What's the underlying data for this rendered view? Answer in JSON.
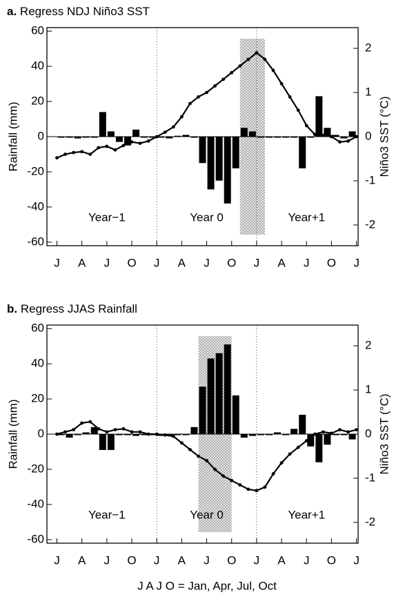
{
  "chart_data": [
    {
      "type": "bar",
      "label": "a.",
      "title": "Regress NDJ Niño3 SST",
      "ylabel": "Rainfall (mm)",
      "y2label": "Niño3 SST (°C)",
      "xlim": [
        -1.2,
        36.2
      ],
      "xticks": [
        {
          "value": 0,
          "label": "J"
        },
        {
          "value": 3,
          "label": "A"
        },
        {
          "value": 6,
          "label": "J"
        },
        {
          "value": 9,
          "label": "O"
        },
        {
          "value": 12,
          "label": "J"
        },
        {
          "value": 15,
          "label": "A"
        },
        {
          "value": 18,
          "label": "J"
        },
        {
          "value": 21,
          "label": "O"
        },
        {
          "value": 24,
          "label": "J"
        },
        {
          "value": 27,
          "label": "A"
        },
        {
          "value": 30,
          "label": "J"
        },
        {
          "value": 33,
          "label": "O"
        },
        {
          "value": 36,
          "label": "J"
        }
      ],
      "ylim": [
        -62,
        62
      ],
      "yticks": [
        -60,
        -40,
        -20,
        0,
        20,
        40,
        60
      ],
      "y2lim": [
        -2.47,
        2.47
      ],
      "y2ticks": [
        -2,
        -1,
        0,
        1,
        2
      ],
      "vlines": [
        12,
        24
      ],
      "shade": [
        22,
        25
      ],
      "annotations": [
        "Year−1",
        "Year 0",
        "Year+1"
      ],
      "series": [
        {
          "type": "bar",
          "color": "#000000",
          "x": [
            0.5,
            1.5,
            2.5,
            3.5,
            4.5,
            5.5,
            6.5,
            7.5,
            8.5,
            9.5,
            10.5,
            11.5,
            12.5,
            13.5,
            14.5,
            15.5,
            16.5,
            17.5,
            18.5,
            19.5,
            20.5,
            21.5,
            22.5,
            23.5,
            24.5,
            25.5,
            26.5,
            27.5,
            28.5,
            29.5,
            30.5,
            31.5,
            32.5,
            33.5,
            34.5,
            35.5
          ],
          "values": [
            0,
            0,
            -1,
            0,
            0,
            14,
            3,
            -3,
            -5,
            4,
            0,
            0,
            0,
            -1,
            0.5,
            1,
            0,
            -15,
            -30,
            -25,
            -38,
            -18,
            5,
            3,
            0,
            0,
            0,
            0,
            0,
            -18,
            0,
            23,
            5,
            1,
            -1,
            3
          ]
        },
        {
          "type": "line",
          "axis": "y2",
          "color": "#000000",
          "x": [
            0,
            1,
            2,
            3,
            4,
            5,
            6,
            7,
            8,
            9,
            10,
            11,
            12,
            13,
            14,
            15,
            16,
            17,
            18,
            19,
            20,
            21,
            22,
            23,
            24,
            25,
            26,
            27,
            28,
            29,
            30,
            31,
            32,
            33,
            34,
            35,
            36
          ],
          "values": [
            -0.48,
            -0.4,
            -0.36,
            -0.34,
            -0.4,
            -0.25,
            -0.22,
            -0.3,
            -0.2,
            -0.12,
            -0.15,
            -0.1,
            0,
            0.1,
            0.22,
            0.45,
            0.75,
            0.9,
            1.0,
            1.15,
            1.3,
            1.45,
            1.6,
            1.75,
            1.9,
            1.75,
            1.5,
            1.2,
            0.9,
            0.6,
            0.25,
            0.05,
            0.03,
            0,
            -0.12,
            -0.1,
            0
          ]
        }
      ]
    },
    {
      "type": "bar",
      "label": "b.",
      "title": "Regress JJAS Rainfall",
      "ylabel": "Rainfall (mm)",
      "y2label": "Niño3 SST (°C)",
      "xlim": [
        -1.2,
        36.2
      ],
      "xticks": [
        {
          "value": 0,
          "label": "J"
        },
        {
          "value": 3,
          "label": "A"
        },
        {
          "value": 6,
          "label": "J"
        },
        {
          "value": 9,
          "label": "O"
        },
        {
          "value": 12,
          "label": "J"
        },
        {
          "value": 15,
          "label": "A"
        },
        {
          "value": 18,
          "label": "J"
        },
        {
          "value": 21,
          "label": "O"
        },
        {
          "value": 24,
          "label": "J"
        },
        {
          "value": 27,
          "label": "A"
        },
        {
          "value": 30,
          "label": "J"
        },
        {
          "value": 33,
          "label": "O"
        },
        {
          "value": 36,
          "label": "J"
        }
      ],
      "ylim": [
        -62,
        62
      ],
      "yticks": [
        -60,
        -40,
        -20,
        0,
        20,
        40,
        60
      ],
      "y2lim": [
        -2.47,
        2.47
      ],
      "y2ticks": [
        -2,
        -1,
        0,
        1,
        2
      ],
      "vlines": [
        12,
        24
      ],
      "shade": [
        17,
        21
      ],
      "annotations": [
        "Year−1",
        "Year 0",
        "Year+1"
      ],
      "series": [
        {
          "type": "bar",
          "color": "#000000",
          "x": [
            0.5,
            1.5,
            2.5,
            3.5,
            4.5,
            5.5,
            6.5,
            7.5,
            8.5,
            9.5,
            10.5,
            11.5,
            12.5,
            13.5,
            14.5,
            15.5,
            16.5,
            17.5,
            18.5,
            19.5,
            20.5,
            21.5,
            22.5,
            23.5,
            24.5,
            25.5,
            26.5,
            27.5,
            28.5,
            29.5,
            30.5,
            31.5,
            32.5,
            33.5,
            34.5,
            35.5
          ],
          "values": [
            0,
            -2,
            0,
            1,
            4,
            -9,
            -9,
            0,
            0,
            -1,
            0,
            0,
            -1,
            -1,
            0,
            0,
            4,
            27,
            43,
            46,
            51,
            22,
            -2,
            -1,
            0,
            0,
            1,
            0,
            3,
            11,
            -7,
            -16,
            -6,
            0,
            0,
            -3
          ]
        },
        {
          "type": "line",
          "axis": "y2",
          "color": "#000000",
          "x": [
            0,
            1,
            2,
            3,
            4,
            5,
            6,
            7,
            8,
            9,
            10,
            11,
            12,
            13,
            14,
            15,
            16,
            17,
            18,
            19,
            20,
            21,
            22,
            23,
            24,
            25,
            26,
            27,
            28,
            29,
            30,
            31,
            32,
            33,
            34,
            35,
            36
          ],
          "values": [
            0,
            0.05,
            0.1,
            0.25,
            0.28,
            0.12,
            0.05,
            0.1,
            0.12,
            0.05,
            0.05,
            0,
            0,
            -0.02,
            -0.05,
            -0.2,
            -0.35,
            -0.5,
            -0.6,
            -0.8,
            -0.95,
            -1.05,
            -1.15,
            -1.25,
            -1.28,
            -1.2,
            -0.9,
            -0.65,
            -0.45,
            -0.3,
            -0.15,
            0,
            0.05,
            0.02,
            0.1,
            0.05,
            0.1
          ]
        }
      ]
    }
  ],
  "caption": "J A J O = Jan, Apr, Jul, Oct"
}
